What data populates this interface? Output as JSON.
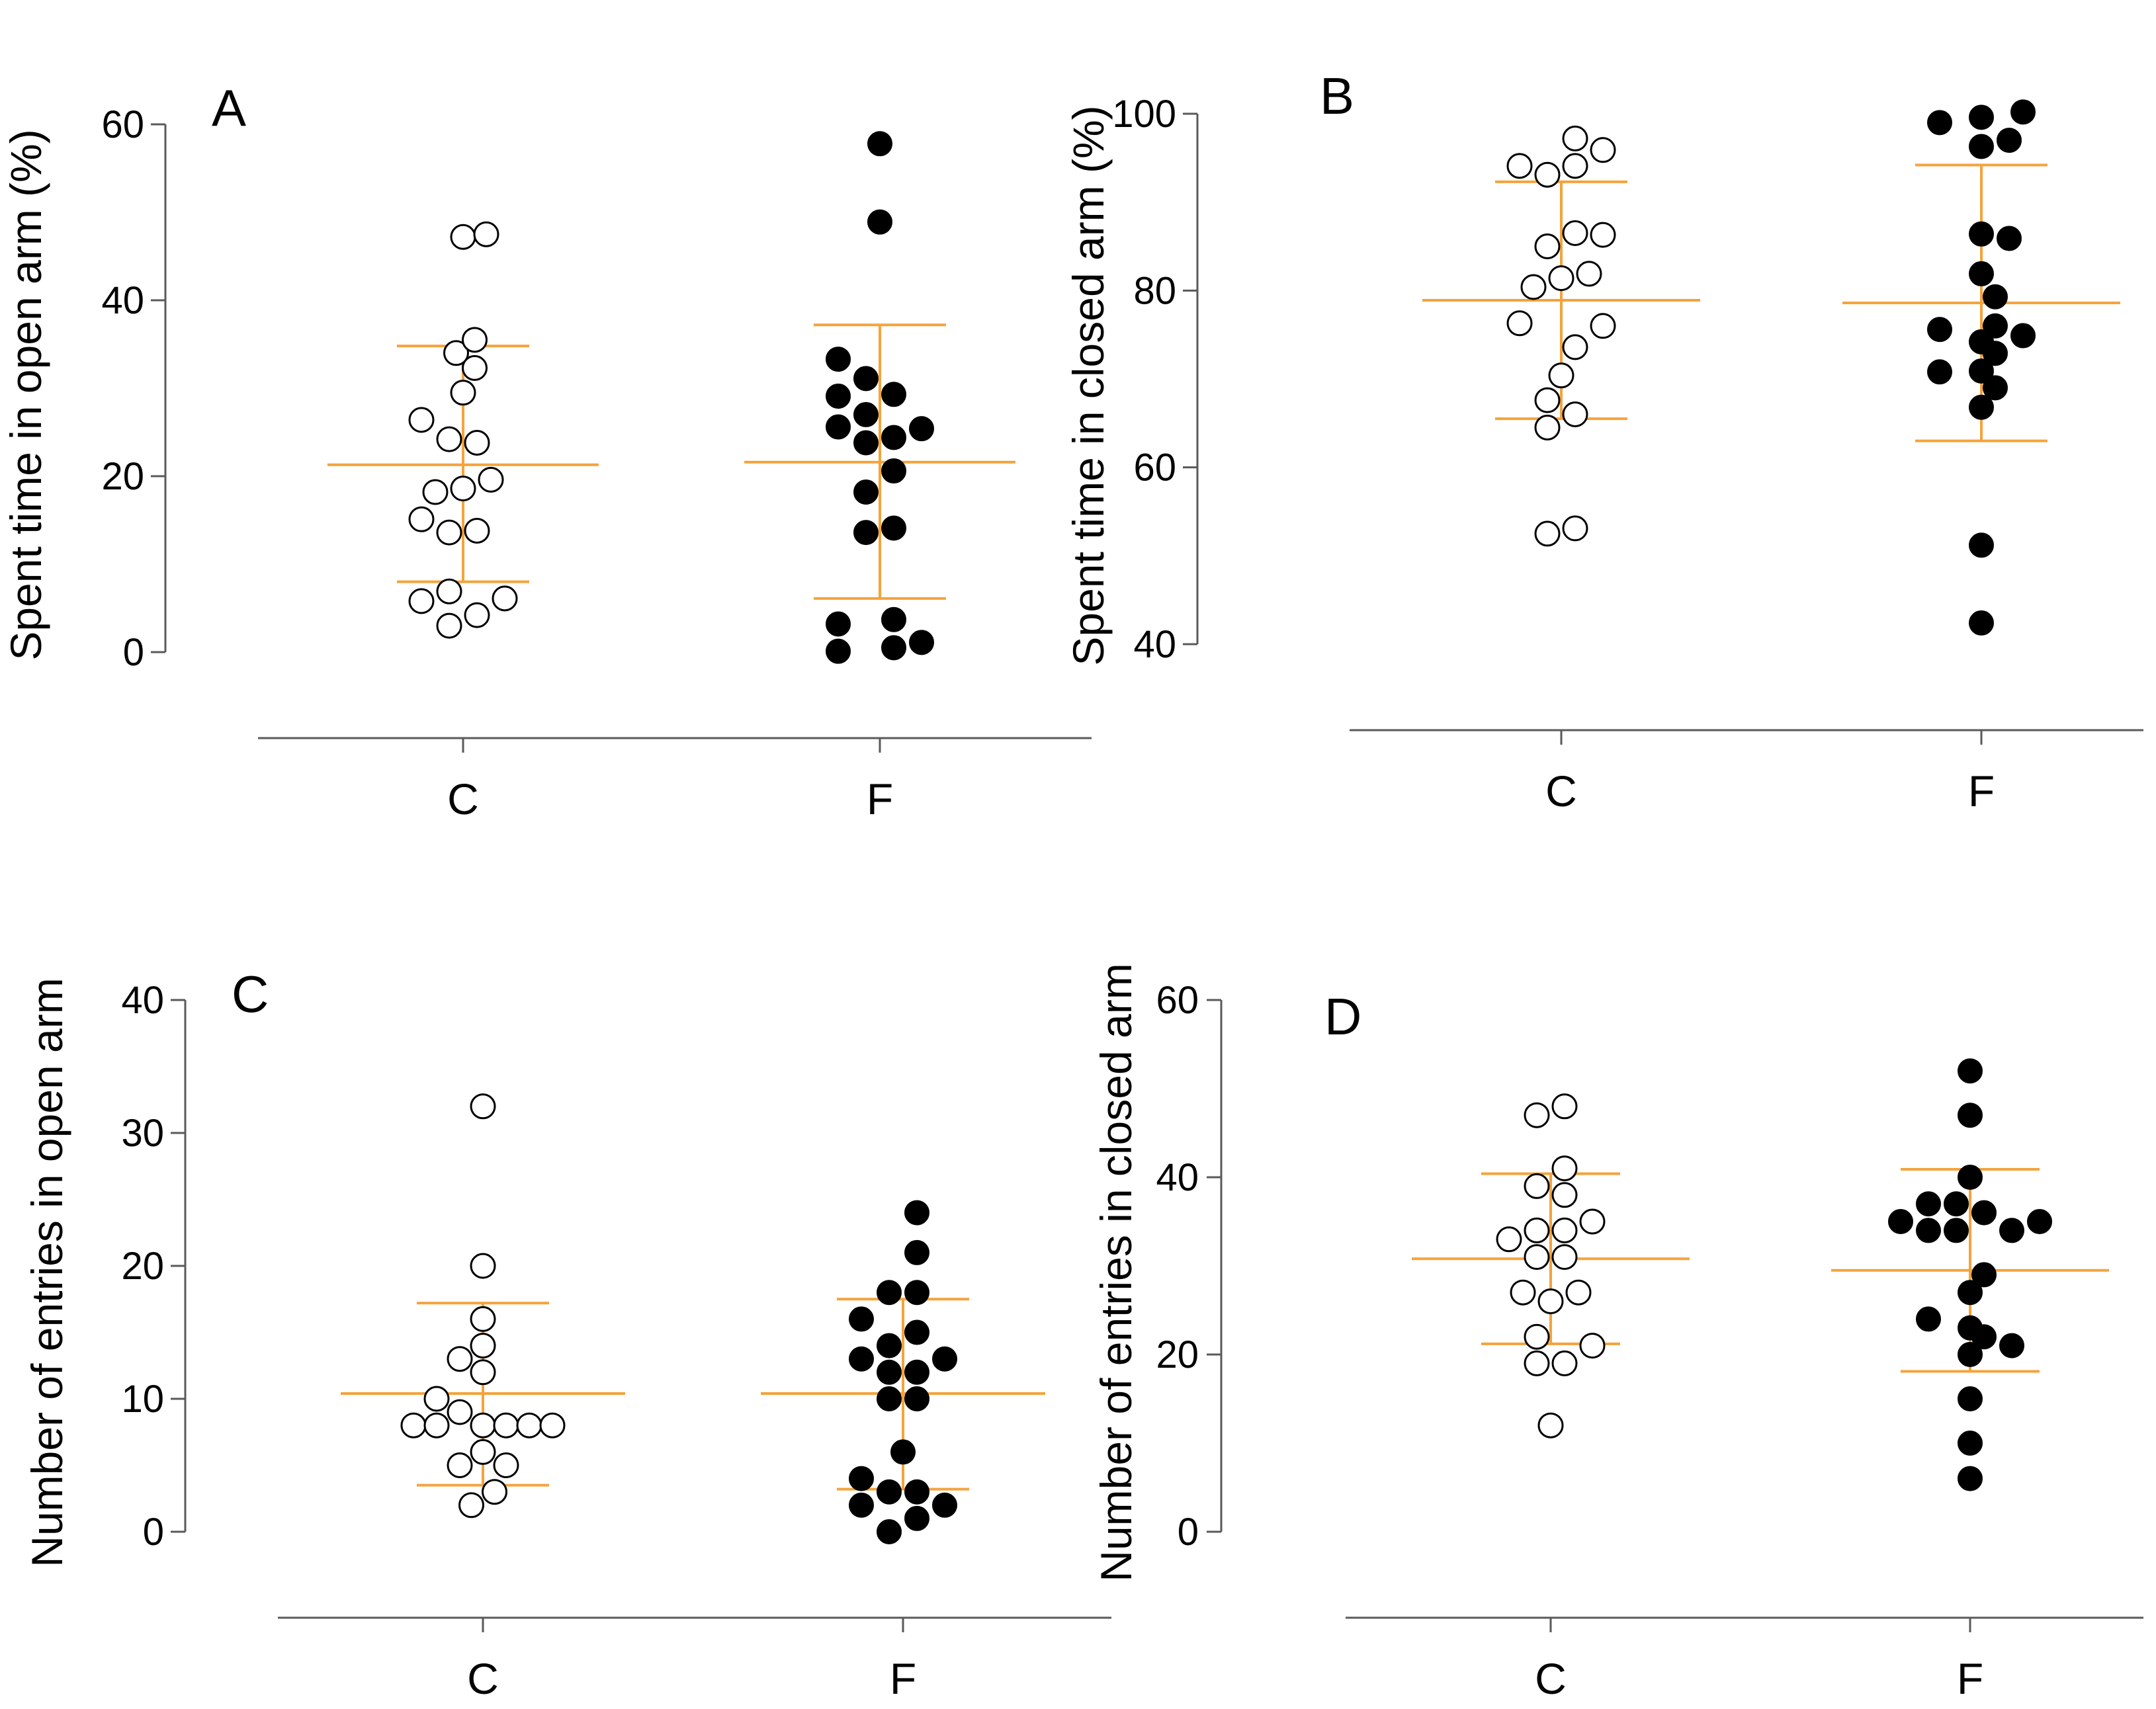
{
  "chart_data": [
    {
      "type": "scatter",
      "panel": "A",
      "ylabel": "Spent time in open arm (%)",
      "categories": [
        "C",
        "F"
      ],
      "yticks": [
        0,
        20,
        40,
        60
      ],
      "ylim": [
        0,
        60
      ],
      "marker_colors": {
        "C": "#ffffff",
        "F": "#000000"
      },
      "series": [
        {
          "name": "C",
          "filled": false,
          "points": [
            [
              0,
              47.2
            ],
            [
              0.1,
              47.5
            ],
            [
              -0.03,
              34
            ],
            [
              0.05,
              35.5
            ],
            [
              0.05,
              32.3
            ],
            [
              0,
              29.5
            ],
            [
              -0.18,
              26.4
            ],
            [
              -0.06,
              24.2
            ],
            [
              0.06,
              23.8
            ],
            [
              -0.12,
              18.2
            ],
            [
              0,
              18.6
            ],
            [
              0.12,
              19.6
            ],
            [
              -0.18,
              15.1
            ],
            [
              -0.06,
              13.6
            ],
            [
              0.06,
              13.8
            ],
            [
              -0.18,
              5.8
            ],
            [
              -0.06,
              6.9
            ],
            [
              0.18,
              6.1
            ],
            [
              -0.06,
              3.0
            ],
            [
              0.06,
              4.2
            ]
          ],
          "mean": 21.3,
          "err_low": 8.0,
          "err_high": 34.8
        },
        {
          "name": "F",
          "filled": true,
          "points": [
            [
              0,
              57.8
            ],
            [
              0,
              48.9
            ],
            [
              -0.18,
              33.3
            ],
            [
              -0.06,
              31.1
            ],
            [
              0.06,
              29.3
            ],
            [
              -0.18,
              29.1
            ],
            [
              -0.06,
              27.0
            ],
            [
              -0.18,
              25.6
            ],
            [
              -0.06,
              23.8
            ],
            [
              0.06,
              24.4
            ],
            [
              0.18,
              25.4
            ],
            [
              0.06,
              20.6
            ],
            [
              -0.06,
              18.2
            ],
            [
              -0.06,
              13.6
            ],
            [
              0.06,
              14.1
            ],
            [
              -0.18,
              3.2
            ],
            [
              0.06,
              3.7
            ],
            [
              -0.18,
              0.1
            ],
            [
              0.06,
              0.5
            ],
            [
              0.18,
              1.1
            ]
          ],
          "mean": 21.6,
          "err_low": 6.1,
          "err_high": 37.2
        }
      ]
    },
    {
      "type": "scatter",
      "panel": "B",
      "ylabel": "Spent time in closed arm (%)",
      "categories": [
        "C",
        "F"
      ],
      "yticks": [
        40,
        60,
        80,
        100
      ],
      "ylim": [
        40,
        100
      ],
      "marker_colors": {
        "C": "#ffffff",
        "F": "#000000"
      },
      "series": [
        {
          "name": "C",
          "filled": false,
          "points": [
            [
              0.06,
              97.2
            ],
            [
              -0.18,
              94.1
            ],
            [
              -0.06,
              93.1
            ],
            [
              0.06,
              94.1
            ],
            [
              0.18,
              95.9
            ],
            [
              -0.06,
              85.0
            ],
            [
              0.06,
              86.5
            ],
            [
              0.18,
              86.3
            ],
            [
              -0.12,
              80.4
            ],
            [
              0,
              81.4
            ],
            [
              0.12,
              81.9
            ],
            [
              -0.18,
              76.3
            ],
            [
              0.18,
              76.0
            ],
            [
              0.06,
              73.6
            ],
            [
              0,
              70.4
            ],
            [
              -0.06,
              67.6
            ],
            [
              -0.06,
              64.5
            ],
            [
              0.06,
              66.0
            ],
            [
              -0.06,
              52.5
            ],
            [
              0.06,
              53.1
            ]
          ],
          "mean": 78.9,
          "err_low": 65.5,
          "err_high": 92.3
        },
        {
          "name": "F",
          "filled": true,
          "points": [
            [
              -0.18,
              99.0
            ],
            [
              0,
              99.6
            ],
            [
              0.18,
              100.2
            ],
            [
              0,
              96.3
            ],
            [
              0.12,
              97.0
            ],
            [
              0,
              86.4
            ],
            [
              0.12,
              85.9
            ],
            [
              0,
              81.9
            ],
            [
              0.06,
              79.3
            ],
            [
              -0.18,
              75.6
            ],
            [
              0.06,
              76.0
            ],
            [
              0.18,
              74.9
            ],
            [
              0,
              74.2
            ],
            [
              -0.18,
              70.8
            ],
            [
              0,
              70.9
            ],
            [
              0.06,
              72.9
            ],
            [
              0.06,
              69.0
            ],
            [
              0,
              66.8
            ],
            [
              0,
              51.2
            ],
            [
              0,
              42.4
            ]
          ],
          "mean": 78.6,
          "err_low": 63.0,
          "err_high": 94.2
        }
      ]
    },
    {
      "type": "scatter",
      "panel": "C",
      "ylabel": "Number of entries in open arm",
      "categories": [
        "C",
        "F"
      ],
      "yticks": [
        0,
        10,
        20,
        30,
        40
      ],
      "ylim": [
        0,
        40
      ],
      "marker_colors": {
        "C": "#ffffff",
        "F": "#000000"
      },
      "series": [
        {
          "name": "C",
          "filled": false,
          "points": [
            [
              0,
              32
            ],
            [
              0,
              20
            ],
            [
              0,
              16
            ],
            [
              0,
              14
            ],
            [
              -0.1,
              13
            ],
            [
              0,
              12
            ],
            [
              -0.2,
              10
            ],
            [
              -0.3,
              8
            ],
            [
              -0.2,
              8
            ],
            [
              -0.1,
              9
            ],
            [
              0,
              8
            ],
            [
              0.1,
              8
            ],
            [
              0.2,
              8
            ],
            [
              0.3,
              8
            ],
            [
              -0.1,
              5
            ],
            [
              0,
              6
            ],
            [
              0.1,
              5
            ],
            [
              0.05,
              3
            ],
            [
              -0.05,
              2
            ]
          ],
          "mean": 10.4,
          "err_low": 3.5,
          "err_high": 17.2
        },
        {
          "name": "F",
          "filled": true,
          "points": [
            [
              0.06,
              24
            ],
            [
              0.06,
              21
            ],
            [
              -0.06,
              18
            ],
            [
              0.06,
              18
            ],
            [
              -0.18,
              16
            ],
            [
              -0.06,
              14
            ],
            [
              0.06,
              15
            ],
            [
              -0.18,
              13
            ],
            [
              0.18,
              13
            ],
            [
              -0.06,
              12
            ],
            [
              0.06,
              12
            ],
            [
              -0.06,
              10
            ],
            [
              0.06,
              10
            ],
            [
              0,
              6
            ],
            [
              -0.18,
              4
            ],
            [
              -0.18,
              2
            ],
            [
              -0.06,
              3
            ],
            [
              0.06,
              3
            ],
            [
              0.18,
              2
            ],
            [
              -0.06,
              0
            ],
            [
              0.06,
              1
            ]
          ],
          "mean": 10.4,
          "err_low": 3.2,
          "err_high": 17.5
        }
      ]
    },
    {
      "type": "scatter",
      "panel": "D",
      "ylabel": "Number of entries in closed arm",
      "categories": [
        "C",
        "F"
      ],
      "yticks": [
        0,
        20,
        40,
        60
      ],
      "ylim": [
        0,
        60
      ],
      "marker_colors": {
        "C": "#ffffff",
        "F": "#000000"
      },
      "series": [
        {
          "name": "C",
          "filled": false,
          "points": [
            [
              0.06,
              48
            ],
            [
              -0.06,
              47
            ],
            [
              0.06,
              41
            ],
            [
              -0.06,
              39
            ],
            [
              0.06,
              38
            ],
            [
              0.18,
              35
            ],
            [
              -0.18,
              33
            ],
            [
              -0.06,
              34
            ],
            [
              0.06,
              34
            ],
            [
              -0.06,
              31
            ],
            [
              0.06,
              31
            ],
            [
              -0.12,
              27
            ],
            [
              0,
              26
            ],
            [
              0.12,
              27
            ],
            [
              -0.06,
              22
            ],
            [
              0.18,
              21
            ],
            [
              -0.06,
              19
            ],
            [
              0.06,
              19
            ],
            [
              0,
              12
            ]
          ],
          "mean": 30.8,
          "err_low": 21.2,
          "err_high": 40.4
        },
        {
          "name": "F",
          "filled": true,
          "points": [
            [
              0,
              52
            ],
            [
              0,
              47
            ],
            [
              0,
              40
            ],
            [
              -0.18,
              37
            ],
            [
              -0.06,
              37
            ],
            [
              -0.3,
              35
            ],
            [
              -0.18,
              34
            ],
            [
              -0.06,
              34
            ],
            [
              0.06,
              36
            ],
            [
              0.18,
              34
            ],
            [
              0.3,
              35
            ],
            [
              0.06,
              29
            ],
            [
              0,
              27
            ],
            [
              -0.18,
              24
            ],
            [
              0,
              23
            ],
            [
              0,
              20
            ],
            [
              0.06,
              22
            ],
            [
              0.18,
              21
            ],
            [
              0,
              15
            ],
            [
              0,
              10
            ],
            [
              0,
              6
            ]
          ],
          "mean": 29.5,
          "err_low": 18.1,
          "err_high": 40.9
        }
      ]
    }
  ]
}
